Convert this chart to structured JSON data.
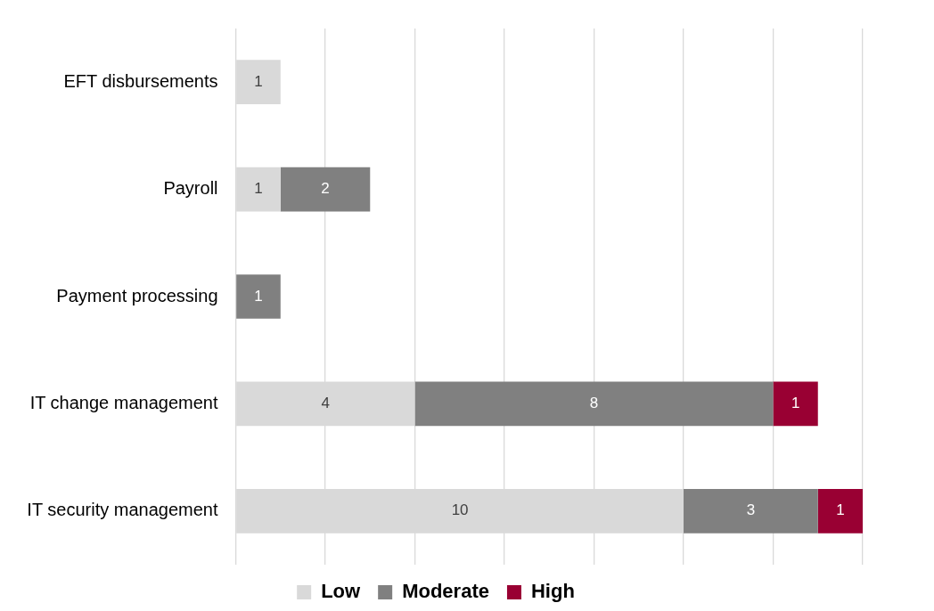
{
  "chart_data": {
    "type": "bar",
    "orientation": "horizontal",
    "stacked": true,
    "categories": [
      "EFT disbursements",
      "Payroll",
      "Payment processing",
      "IT change management",
      "IT security management"
    ],
    "series": [
      {
        "name": "Low",
        "color": "#d9d9d9",
        "values": [
          1,
          1,
          null,
          4,
          10
        ]
      },
      {
        "name": "Moderate",
        "color": "#808080",
        "values": [
          null,
          2,
          1,
          8,
          3
        ]
      },
      {
        "name": "High",
        "color": "#990033",
        "values": [
          null,
          null,
          null,
          1,
          1
        ]
      }
    ],
    "xlim": [
      0,
      14
    ],
    "xticks": [
      {
        "value": 0,
        "label": null
      },
      {
        "value": 2,
        "label": null
      },
      {
        "value": 4,
        "label": null
      },
      {
        "value": 6,
        "label": null
      },
      {
        "value": 8,
        "label": null
      },
      {
        "value": 10,
        "label": null
      },
      {
        "value": 12,
        "label": null
      },
      {
        "value": 14,
        "label": null
      }
    ],
    "tick_labels": "y",
    "grid": "x",
    "legend": "bottom",
    "data_labels": true
  }
}
